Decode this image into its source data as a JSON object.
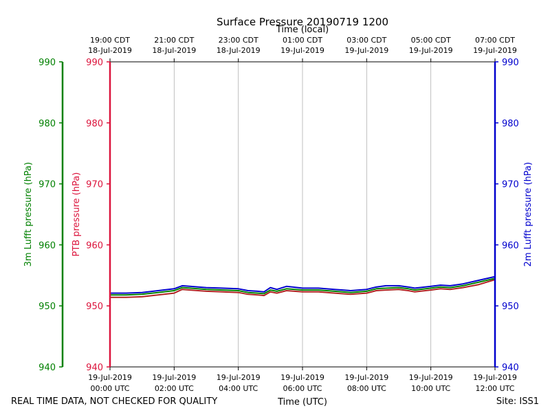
{
  "chart_data": {
    "type": "line",
    "title": "Surface Pressure 20190719 1200",
    "xlabel_bottom": "Time (UTC)",
    "xlabel_top": "Time (local)",
    "ylabel_ptb": "PTB pressure (hPa)",
    "ylabel_3m": "3m Lufft pressure (hPa)",
    "ylabel_2m": "2m Lufft pressure (hPa)",
    "footer_left": "REAL TIME DATA, NOT CHECKED FOR QUALITY",
    "footer_right": "Site: ISS1",
    "xlim": [
      0,
      12
    ],
    "ylim": [
      940,
      990
    ],
    "yticks": [
      940,
      950,
      960,
      970,
      980,
      990
    ],
    "ytick_labels": [
      "940",
      "950",
      "960",
      "970",
      "980",
      "990"
    ],
    "grid": true,
    "bottom_ticks": [
      {
        "x": 0,
        "date": "19-Jul-2019",
        "time": "00:00 UTC"
      },
      {
        "x": 2,
        "date": "19-Jul-2019",
        "time": "02:00 UTC"
      },
      {
        "x": 4,
        "date": "19-Jul-2019",
        "time": "04:00 UTC"
      },
      {
        "x": 6,
        "date": "19-Jul-2019",
        "time": "06:00 UTC"
      },
      {
        "x": 8,
        "date": "19-Jul-2019",
        "time": "08:00 UTC"
      },
      {
        "x": 10,
        "date": "19-Jul-2019",
        "time": "10:00 UTC"
      },
      {
        "x": 12,
        "date": "19-Jul-2019",
        "time": "12:00 UTC"
      }
    ],
    "top_ticks": [
      {
        "x": 0,
        "time": "19:00 CDT",
        "date": "18-Jul-2019"
      },
      {
        "x": 2,
        "time": "21:00 CDT",
        "date": "18-Jul-2019"
      },
      {
        "x": 4,
        "time": "23:00 CDT",
        "date": "18-Jul-2019"
      },
      {
        "x": 6,
        "time": "01:00 CDT",
        "date": "19-Jul-2019"
      },
      {
        "x": 8,
        "time": "03:00 CDT",
        "date": "19-Jul-2019"
      },
      {
        "x": 10,
        "time": "05:00 CDT",
        "date": "19-Jul-2019"
      },
      {
        "x": 12,
        "time": "07:00 CDT",
        "date": "19-Jul-2019"
      }
    ],
    "colors": {
      "ptb": "#dc143c",
      "lufft_3m": "#008000",
      "lufft_2m": "#0000cd",
      "grid": "#b0b0b0",
      "series_ptb": "#b22222",
      "series_3m": "#008000",
      "series_2m": "#0000cd"
    },
    "series": [
      {
        "key": "ptb",
        "x": [
          0,
          0.5,
          1,
          1.5,
          2,
          2.25,
          2.5,
          3,
          3.5,
          4,
          4.3,
          4.6,
          4.8,
          5,
          5.2,
          5.5,
          6,
          6.5,
          7,
          7.5,
          8,
          8.3,
          8.6,
          9,
          9.3,
          9.5,
          10,
          10.3,
          10.6,
          11,
          11.5,
          12
        ],
        "y": [
          951.4,
          951.4,
          951.5,
          951.8,
          952.1,
          952.7,
          952.6,
          952.4,
          952.3,
          952.2,
          951.9,
          951.8,
          951.7,
          952.3,
          952.1,
          952.5,
          952.3,
          952.3,
          952.1,
          951.9,
          952.1,
          952.5,
          952.6,
          952.7,
          952.5,
          952.3,
          952.6,
          952.8,
          952.7,
          953.0,
          953.5,
          954.3
        ]
      },
      {
        "key": "lufft_3m",
        "x": [
          0,
          0.5,
          1,
          1.5,
          2,
          2.25,
          2.5,
          3,
          3.5,
          4,
          4.3,
          4.6,
          4.8,
          5,
          5.2,
          5.5,
          6,
          6.5,
          7,
          7.5,
          8,
          8.3,
          8.6,
          9,
          9.3,
          9.5,
          10,
          10.3,
          10.6,
          11,
          11.5,
          12
        ],
        "y": [
          951.8,
          951.8,
          951.9,
          952.2,
          952.5,
          953.0,
          952.9,
          952.7,
          952.6,
          952.5,
          952.2,
          952.1,
          952.0,
          952.6,
          952.4,
          952.8,
          952.6,
          952.6,
          952.4,
          952.2,
          952.4,
          952.8,
          952.9,
          953.0,
          952.8,
          952.6,
          952.9,
          953.1,
          953.0,
          953.3,
          953.9,
          954.5
        ]
      },
      {
        "key": "lufft_2m",
        "x": [
          0,
          0.5,
          1,
          1.5,
          2,
          2.25,
          2.5,
          3,
          3.5,
          4,
          4.3,
          4.6,
          4.8,
          5,
          5.2,
          5.5,
          6,
          6.5,
          7,
          7.5,
          8,
          8.3,
          8.6,
          9,
          9.3,
          9.5,
          10,
          10.3,
          10.6,
          11,
          11.5,
          12
        ],
        "y": [
          952.1,
          952.1,
          952.2,
          952.5,
          952.8,
          953.3,
          953.2,
          953.0,
          952.9,
          952.8,
          952.5,
          952.4,
          952.3,
          953.0,
          952.7,
          953.2,
          952.9,
          952.9,
          952.7,
          952.5,
          952.7,
          953.1,
          953.3,
          953.3,
          953.1,
          952.9,
          953.2,
          953.4,
          953.3,
          953.6,
          954.2,
          954.8
        ]
      }
    ]
  }
}
